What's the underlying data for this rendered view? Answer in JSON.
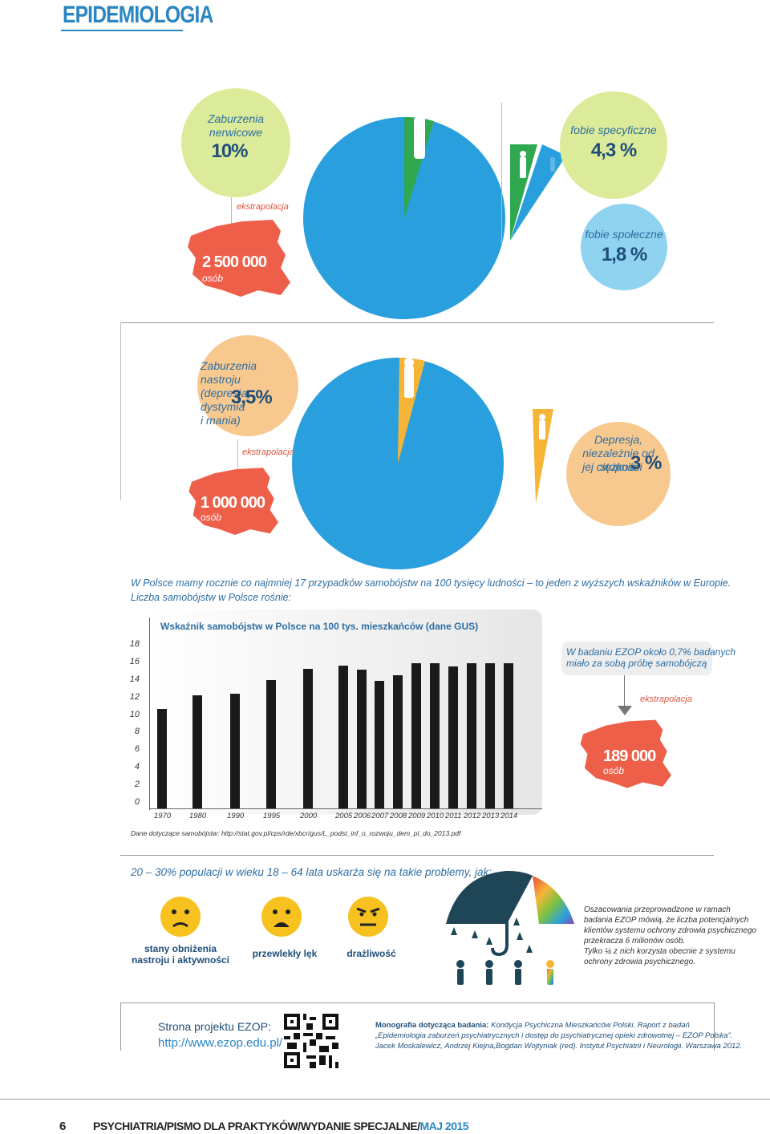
{
  "header": {
    "title": "EPIDEMIOLOGIA"
  },
  "section1": {
    "left_circle": {
      "line1": "Zaburzenia",
      "line2": "nerwicowe",
      "value": "10%"
    },
    "right_top_circle": {
      "label": "fobie specyficzne",
      "value": "4,3 %"
    },
    "right_bottom_circle": {
      "label": "fobie społeczne",
      "value": "1,8 %"
    },
    "extrapolation": "ekstrapolacja",
    "map": {
      "value": "2 500 000",
      "unit": "osób"
    }
  },
  "section2": {
    "left_circle": {
      "line1": "Zaburzenia nastroju",
      "line2": "(depresja, dystymia",
      "line3": "i mania)",
      "value": "3,5%"
    },
    "right_circle": {
      "line1": "Depresja,",
      "line2": "niezależnie od stopnia",
      "line3": "jej ciężkości",
      "value": "3 %"
    },
    "extrapolation": "ekstrapolacja",
    "map": {
      "value": "1 000 000",
      "unit": "osób"
    }
  },
  "intro_text": {
    "line1": "W Polsce mamy rocznie co najmniej 17 przypadków samobójstw na 100 tysięcy ludności – to jeden z wyższych wskaźników w Europie.",
    "line2": "Liczba samobójstw w Polsce rośnie:"
  },
  "chart_data": {
    "type": "bar",
    "title": "Wskaźnik samobójstw w Polsce na 100 tys. mieszkańców (dane GUS)",
    "categories": [
      "1970",
      "1980",
      "1990",
      "1995",
      "2000",
      "2005",
      "2006",
      "2007",
      "2008",
      "2009",
      "2010",
      "2011",
      "2012",
      "2013",
      "2014"
    ],
    "values": [
      11.3,
      12.9,
      13.1,
      14.6,
      15.9,
      16.3,
      15.8,
      14.5,
      15.2,
      16.5,
      16.5,
      16.2,
      16.5,
      16.5,
      16.5
    ],
    "yticks": [
      "0",
      "2",
      "4",
      "6",
      "8",
      "10",
      "12",
      "14",
      "16",
      "18"
    ],
    "ylim": [
      0,
      18
    ],
    "source": "Dane dotyczące samobójstw: http://stat.gov.pl/cps/rde/xbcr/gus/L_podst_inf_o_rozwoju_dem_pl_do_2013.pdf"
  },
  "ezop_box": {
    "line1": "W badaniu EZOP około 0,7% badanych",
    "line2": "miało za sobą próbę samobójczą",
    "extrapolation": "ekstrapolacja",
    "map": {
      "value": "189 000",
      "unit": "osób"
    }
  },
  "problems": {
    "heading": "20 – 30% populacji w wieku 18 – 64 lata uskarża się na takie problemy, jak:",
    "items": [
      {
        "line1": "stany obniżenia",
        "line2": "nastroju i aktywności"
      },
      {
        "line1": "przewlekły lęk",
        "line2": ""
      },
      {
        "line1": "drażliwość",
        "line2": ""
      }
    ],
    "note": [
      "Oszacowania przeprowadzone w ramach",
      "badania EZOP mówią, że liczba potencjalnych",
      "klientów systemu ochrony zdrowia psychicznego",
      "przekracza 6 milionów osób.",
      "Tylko ¼ z nich korzysta obecnie z systemu",
      "ochrony zdrowia psychicznego."
    ]
  },
  "project": {
    "label": "Strona projektu EZOP:",
    "url": "http://www.ezop.edu.pl/"
  },
  "monograph": {
    "bold": "Monografia dotycząca badania:",
    "line1": " Kondycja Psychiczna Mieszkańców Polski. Raport z badań",
    "line2": "„Epidemiologia zaburzeń psychiatrycznych i dostęp do psychiatrycznej opieki zdrowotnej – EZOP Polska”.",
    "line3": "Jacek Moskalewicz, Andrzej Kiejna,Bogdan Wojtyniak (red). Instytut Psychiatrii i Neurologii. Warszawa 2012."
  },
  "footer": {
    "page": "6",
    "p1": "PSYCHIATRIA/",
    "p2": "PISMO DLA PRAKTYKÓW/",
    "p3": "WYDANIE SPECJALNE/",
    "p4": "MAJ 2015"
  },
  "colors": {
    "blue": "#2a9fde",
    "green": "#2fa84f",
    "light_green": "#dceb9a",
    "light_blue": "#8fd3f0",
    "peach": "#f8c98f",
    "red": "#ee5f4a",
    "yellow": "#f7b538"
  }
}
